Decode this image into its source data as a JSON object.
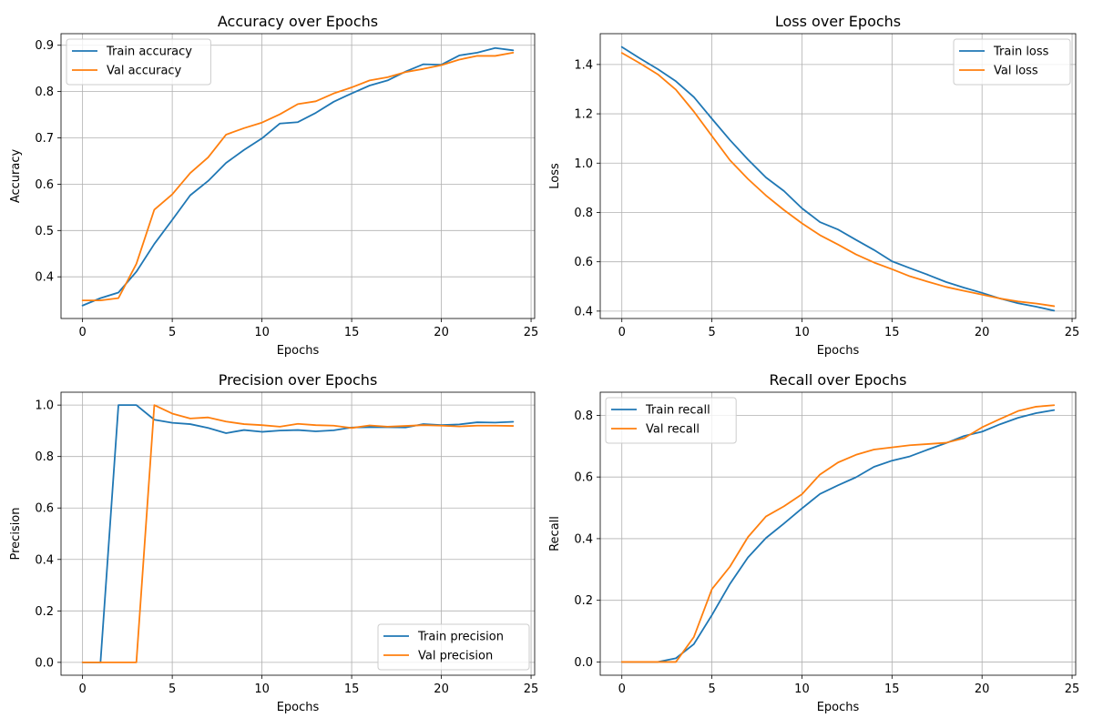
{
  "chart_data": [
    {
      "type": "line",
      "title": "Accuracy over Epochs",
      "xlabel": "Epochs",
      "ylabel": "Accuracy",
      "xlim": [
        -1.2,
        25.2
      ],
      "ylim": [
        0.31,
        0.925
      ],
      "xticks": [
        0,
        5,
        10,
        15,
        20,
        25
      ],
      "yticks": [
        0.4,
        0.5,
        0.6,
        0.7,
        0.8,
        0.9
      ],
      "grid": true,
      "legend_position": "upper-left",
      "x": [
        0,
        1,
        2,
        3,
        4,
        5,
        6,
        7,
        8,
        9,
        10,
        11,
        12,
        13,
        14,
        15,
        16,
        17,
        18,
        19,
        20,
        21,
        22,
        23,
        24
      ],
      "series": [
        {
          "name": "Train accuracy",
          "color": "#1f77b4",
          "values": [
            0.338,
            0.354,
            0.366,
            0.411,
            0.471,
            0.523,
            0.576,
            0.607,
            0.646,
            0.674,
            0.699,
            0.731,
            0.734,
            0.754,
            0.778,
            0.796,
            0.813,
            0.824,
            0.843,
            0.859,
            0.858,
            0.878,
            0.884,
            0.894,
            0.889
          ]
        },
        {
          "name": "Val accuracy",
          "color": "#ff7f0e",
          "values": [
            0.349,
            0.349,
            0.354,
            0.428,
            0.545,
            0.578,
            0.624,
            0.658,
            0.707,
            0.721,
            0.733,
            0.751,
            0.773,
            0.779,
            0.796,
            0.809,
            0.824,
            0.831,
            0.842,
            0.849,
            0.857,
            0.869,
            0.877,
            0.877,
            0.884
          ]
        }
      ]
    },
    {
      "type": "line",
      "title": "Loss over Epochs",
      "xlabel": "Epochs",
      "ylabel": "Loss",
      "xlim": [
        -1.2,
        25.2
      ],
      "ylim": [
        0.37,
        1.525
      ],
      "xticks": [
        0,
        5,
        10,
        15,
        20,
        25
      ],
      "yticks": [
        0.4,
        0.6,
        0.8,
        1.0,
        1.2,
        1.4
      ],
      "grid": true,
      "legend_position": "upper-right",
      "x": [
        0,
        1,
        2,
        3,
        4,
        5,
        6,
        7,
        8,
        9,
        10,
        11,
        12,
        13,
        14,
        15,
        16,
        17,
        18,
        19,
        20,
        21,
        22,
        23,
        24
      ],
      "series": [
        {
          "name": "Train loss",
          "color": "#1f77b4",
          "values": [
            1.471,
            1.425,
            1.381,
            1.332,
            1.268,
            1.18,
            1.094,
            1.015,
            0.942,
            0.887,
            0.817,
            0.761,
            0.731,
            0.689,
            0.648,
            0.602,
            0.574,
            0.547,
            0.518,
            0.495,
            0.474,
            0.451,
            0.432,
            0.418,
            0.402
          ]
        },
        {
          "name": "Val loss",
          "color": "#ff7f0e",
          "values": [
            1.447,
            1.405,
            1.36,
            1.298,
            1.209,
            1.11,
            1.012,
            0.936,
            0.869,
            0.81,
            0.756,
            0.708,
            0.67,
            0.63,
            0.597,
            0.57,
            0.541,
            0.519,
            0.498,
            0.482,
            0.467,
            0.451,
            0.439,
            0.431,
            0.42
          ]
        }
      ]
    },
    {
      "type": "line",
      "title": "Precision over Epochs",
      "xlabel": "Epochs",
      "ylabel": "Precision",
      "xlim": [
        -1.2,
        25.2
      ],
      "ylim": [
        -0.05,
        1.05
      ],
      "xticks": [
        0,
        5,
        10,
        15,
        20,
        25
      ],
      "yticks": [
        0.0,
        0.2,
        0.4,
        0.6,
        0.8,
        1.0
      ],
      "grid": true,
      "legend_position": "lower-right",
      "x": [
        0,
        1,
        2,
        3,
        4,
        5,
        6,
        7,
        8,
        9,
        10,
        11,
        12,
        13,
        14,
        15,
        16,
        17,
        18,
        19,
        20,
        21,
        22,
        23,
        24
      ],
      "series": [
        {
          "name": "Train precision",
          "color": "#1f77b4",
          "values": [
            0.0,
            0.0,
            1.0,
            1.0,
            0.943,
            0.931,
            0.926,
            0.911,
            0.891,
            0.903,
            0.896,
            0.901,
            0.903,
            0.898,
            0.902,
            0.913,
            0.914,
            0.914,
            0.913,
            0.926,
            0.922,
            0.925,
            0.933,
            0.932,
            0.935
          ]
        },
        {
          "name": "Val precision",
          "color": "#ff7f0e",
          "values": [
            0.0,
            0.0,
            0.0,
            0.0,
            1.0,
            0.967,
            0.948,
            0.952,
            0.936,
            0.926,
            0.922,
            0.916,
            0.927,
            0.922,
            0.92,
            0.911,
            0.921,
            0.916,
            0.919,
            0.922,
            0.92,
            0.917,
            0.92,
            0.92,
            0.919
          ]
        }
      ]
    },
    {
      "type": "line",
      "title": "Recall over Epochs",
      "xlabel": "Epochs",
      "ylabel": "Recall",
      "xlim": [
        -1.2,
        25.2
      ],
      "ylim": [
        -0.043,
        0.875
      ],
      "xticks": [
        0,
        5,
        10,
        15,
        20,
        25
      ],
      "yticks": [
        0.0,
        0.2,
        0.4,
        0.6,
        0.8
      ],
      "grid": true,
      "legend_position": "upper-left",
      "x": [
        0,
        1,
        2,
        3,
        4,
        5,
        6,
        7,
        8,
        9,
        10,
        11,
        12,
        13,
        14,
        15,
        16,
        17,
        18,
        19,
        20,
        21,
        22,
        23,
        24
      ],
      "series": [
        {
          "name": "Train recall",
          "color": "#1f77b4",
          "values": [
            0.0,
            0.0,
            0.0,
            0.012,
            0.058,
            0.152,
            0.253,
            0.339,
            0.402,
            0.449,
            0.498,
            0.545,
            0.573,
            0.599,
            0.633,
            0.653,
            0.667,
            0.689,
            0.71,
            0.733,
            0.747,
            0.771,
            0.792,
            0.807,
            0.817
          ]
        },
        {
          "name": "Val recall",
          "color": "#ff7f0e",
          "values": [
            0.0,
            0.0,
            0.0,
            0.0,
            0.081,
            0.236,
            0.309,
            0.405,
            0.472,
            0.505,
            0.544,
            0.608,
            0.647,
            0.672,
            0.689,
            0.696,
            0.703,
            0.707,
            0.711,
            0.726,
            0.761,
            0.788,
            0.814,
            0.828,
            0.833
          ]
        }
      ]
    }
  ]
}
